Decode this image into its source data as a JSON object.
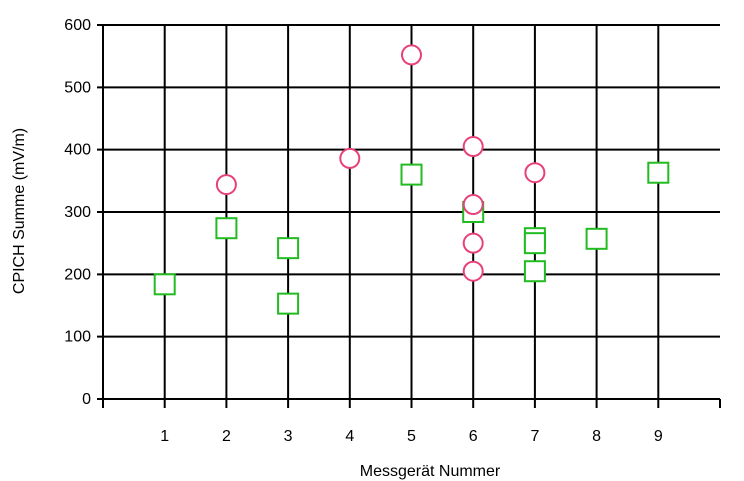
{
  "chart_data": {
    "type": "scatter",
    "title": "",
    "xlabel": "Messgerät Nummer",
    "ylabel": "CPICH Summe (mV/m)",
    "xlim": [
      0,
      10
    ],
    "ylim": [
      0,
      600
    ],
    "x_ticks": [
      "1",
      "2",
      "3",
      "4",
      "5",
      "6",
      "7",
      "8",
      "9"
    ],
    "y_ticks": [
      "0",
      "100",
      "200",
      "300",
      "400",
      "500",
      "600"
    ],
    "grid": true,
    "legend": "none",
    "series": [
      {
        "marker": "square",
        "color": "#22bb22",
        "points": [
          {
            "x": 1,
            "y": 184
          },
          {
            "x": 2,
            "y": 274
          },
          {
            "x": 3,
            "y": 242
          },
          {
            "x": 3,
            "y": 153
          },
          {
            "x": 5,
            "y": 360
          },
          {
            "x": 6,
            "y": 300
          },
          {
            "x": 7,
            "y": 258
          },
          {
            "x": 7,
            "y": 250
          },
          {
            "x": 7,
            "y": 205
          },
          {
            "x": 8,
            "y": 257
          },
          {
            "x": 9,
            "y": 363
          }
        ]
      },
      {
        "marker": "circle",
        "color": "#e8407a",
        "points": [
          {
            "x": 2,
            "y": 344
          },
          {
            "x": 4,
            "y": 386
          },
          {
            "x": 5,
            "y": 552
          },
          {
            "x": 6,
            "y": 405
          },
          {
            "x": 6,
            "y": 312
          },
          {
            "x": 6,
            "y": 250
          },
          {
            "x": 6,
            "y": 205
          },
          {
            "x": 7,
            "y": 363
          }
        ]
      }
    ]
  }
}
